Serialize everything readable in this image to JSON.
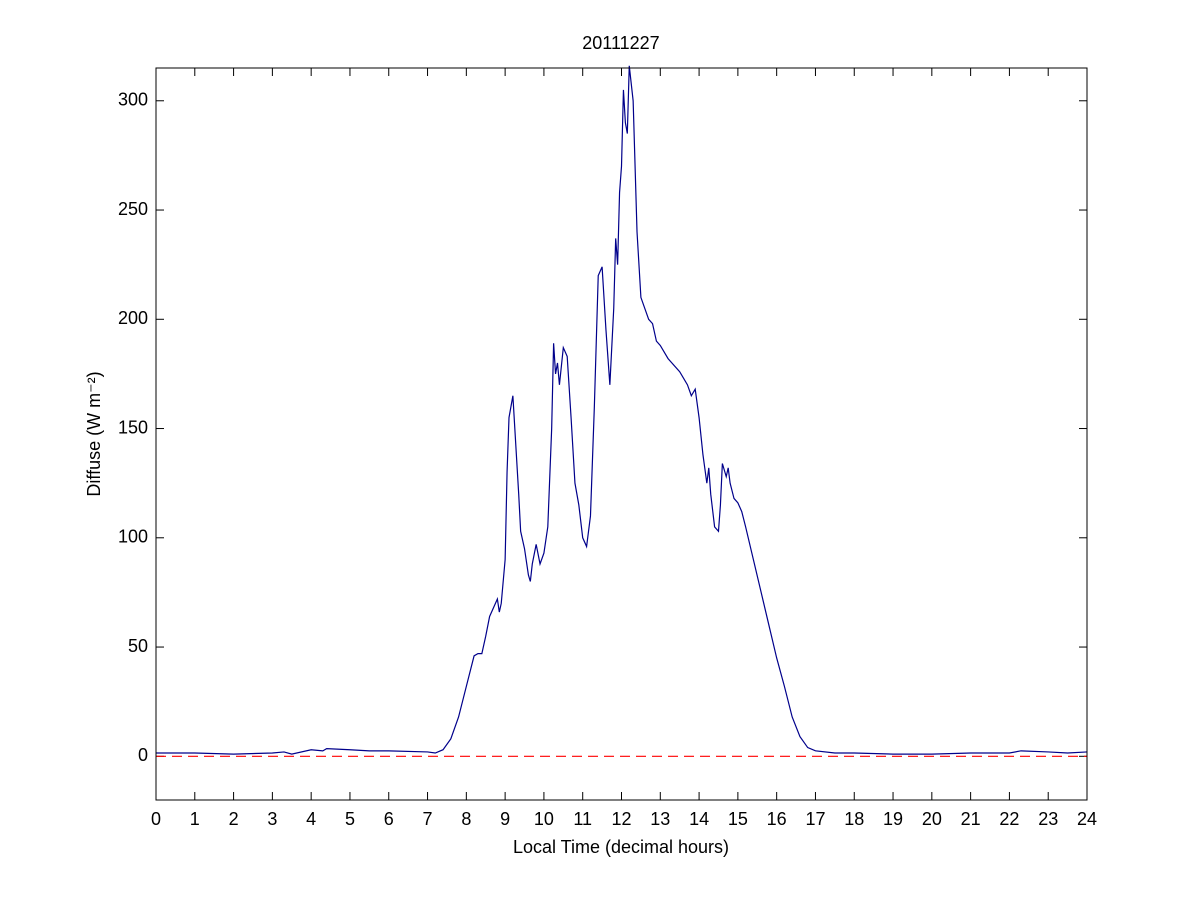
{
  "chart_data": {
    "type": "line",
    "title": "20111227",
    "x_label": "Local Time (decimal hours)",
    "y_label": "Diffuse (W m⁻²)",
    "x": [
      0,
      1,
      2,
      3,
      3.3,
      3.5,
      4,
      4.3,
      4.4,
      5,
      5.5,
      6,
      7,
      7.2,
      7.4,
      7.6,
      7.8,
      8,
      8.2,
      8.3,
      8.4,
      8.5,
      8.6,
      8.7,
      8.8,
      8.85,
      8.9,
      9.0,
      9.05,
      9.1,
      9.2,
      9.25,
      9.35,
      9.4,
      9.5,
      9.6,
      9.65,
      9.7,
      9.8,
      9.9,
      10.0,
      10.1,
      10.2,
      10.25,
      10.3,
      10.35,
      10.4,
      10.5,
      10.6,
      10.7,
      10.8,
      10.9,
      11.0,
      11.1,
      11.2,
      11.3,
      11.4,
      11.5,
      11.6,
      11.7,
      11.8,
      11.85,
      11.9,
      11.95,
      12.0,
      12.05,
      12.1,
      12.15,
      12.2,
      12.3,
      12.4,
      12.5,
      12.7,
      12.8,
      12.9,
      13.0,
      13.2,
      13.5,
      13.7,
      13.8,
      13.9,
      14.0,
      14.1,
      14.2,
      14.25,
      14.3,
      14.4,
      14.5,
      14.55,
      14.6,
      14.7,
      14.75,
      14.8,
      14.9,
      15.0,
      15.1,
      15.2,
      15.4,
      15.6,
      15.8,
      16.0,
      16.2,
      16.4,
      16.6,
      16.8,
      17.0,
      17.5,
      18,
      19,
      20,
      21,
      22,
      22.3,
      23,
      23.5,
      24
    ],
    "series": [
      {
        "color": "#00008b",
        "values": [
          1.5,
          1.5,
          1,
          1.5,
          2,
          1,
          3,
          2.5,
          3.5,
          3,
          2.5,
          2.5,
          2,
          1.5,
          3,
          8,
          18,
          32,
          46,
          47,
          47,
          55,
          64,
          68,
          72,
          66,
          70,
          90,
          130,
          155,
          165,
          150,
          120,
          103,
          95,
          83,
          80,
          88,
          97,
          88,
          93,
          105,
          150,
          189,
          175,
          180,
          170,
          187,
          183,
          155,
          125,
          115,
          100,
          96,
          110,
          160,
          220,
          224,
          195,
          170,
          205,
          237,
          225,
          258,
          270,
          305,
          290,
          285,
          316,
          300,
          240,
          210,
          200,
          198,
          190,
          188,
          182,
          176,
          170,
          165,
          168,
          155,
          138,
          125,
          132,
          120,
          105,
          103,
          115,
          134,
          128,
          132,
          125,
          118,
          116,
          112,
          105,
          90,
          75,
          60,
          45,
          32,
          18,
          9,
          4,
          2.5,
          1.5,
          1.5,
          1,
          1,
          1.5,
          1.5,
          2.5,
          2,
          1.5,
          2
        ]
      }
    ],
    "reference_line": {
      "value": 0,
      "color": "#ff0000"
    },
    "xlim": [
      0,
      24
    ],
    "xticks": [
      0,
      1,
      2,
      3,
      4,
      5,
      6,
      7,
      8,
      9,
      10,
      11,
      12,
      13,
      14,
      15,
      16,
      17,
      18,
      19,
      20,
      21,
      22,
      23,
      24
    ],
    "ylim": [
      -20,
      315
    ],
    "yticks": [
      0,
      50,
      100,
      150,
      200,
      250,
      300
    ]
  }
}
